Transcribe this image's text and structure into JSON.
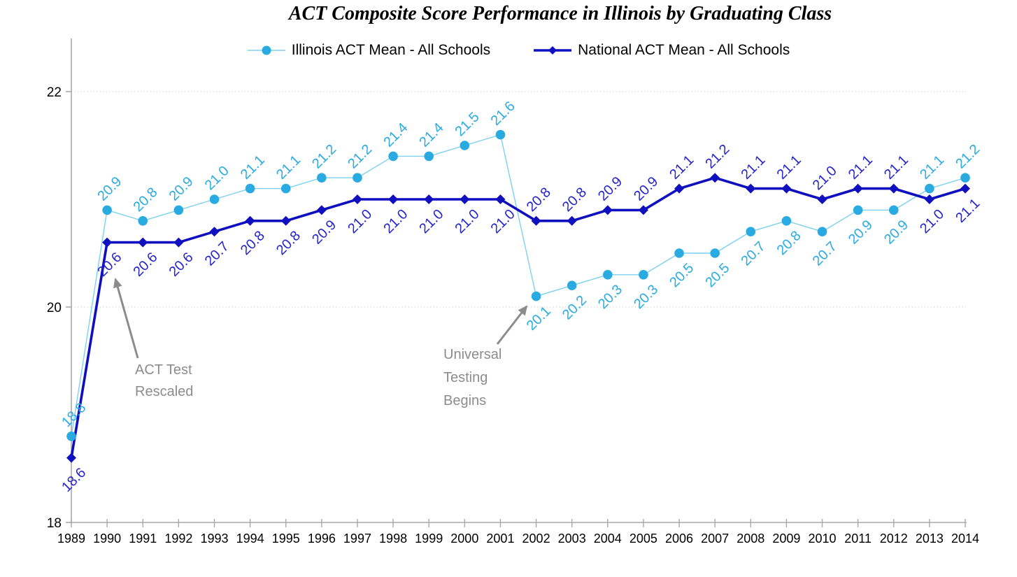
{
  "title": "ACT Composite Score Performance in Illinois by Graduating Class",
  "chart_data": {
    "type": "line",
    "x": [
      1989,
      1990,
      1991,
      1992,
      1993,
      1994,
      1995,
      1996,
      1997,
      1998,
      1999,
      2000,
      2001,
      2002,
      2003,
      2004,
      2005,
      2006,
      2007,
      2008,
      2009,
      2010,
      2011,
      2012,
      2013,
      2014
    ],
    "series": [
      {
        "name": "Illinois ACT Mean - All Schools",
        "marker": "circle",
        "color": "#29ABE2",
        "line_color": "#7CD1F0",
        "label_color": "#29ABE2",
        "values": [
          18.8,
          20.9,
          20.8,
          20.9,
          21.0,
          21.1,
          21.1,
          21.2,
          21.2,
          21.4,
          21.4,
          21.5,
          21.6,
          20.1,
          20.2,
          20.3,
          20.3,
          20.5,
          20.5,
          20.7,
          20.8,
          20.7,
          20.9,
          20.9,
          21.1,
          21.2
        ]
      },
      {
        "name": "National ACT Mean - All Schools",
        "marker": "diamond",
        "color": "#0F0FC0",
        "line_color": "#0F0FC0",
        "label_color": "#2424CE",
        "values": [
          18.6,
          20.6,
          20.6,
          20.6,
          20.7,
          20.8,
          20.8,
          20.9,
          21.0,
          21.0,
          21.0,
          21.0,
          21.0,
          20.8,
          20.8,
          20.9,
          20.9,
          21.1,
          21.2,
          21.1,
          21.1,
          21.0,
          21.1,
          21.1,
          21.0,
          21.1
        ]
      }
    ],
    "ylim": [
      18,
      22
    ],
    "yticks": [
      18,
      20,
      22
    ],
    "grid": "horizontal-dotted",
    "legend_position": "top",
    "annotations": [
      {
        "lines": [
          "ACT Test",
          "Rescaled"
        ],
        "points_to_year": 1990
      },
      {
        "lines": [
          "Universal",
          "Testing",
          "Begins"
        ],
        "points_to_year": 2002
      }
    ],
    "colors": {
      "axis": "#A8A8A8",
      "gridline": "#DADADA",
      "tick_label": "#000000",
      "annotation": "#8C8C8C"
    }
  }
}
